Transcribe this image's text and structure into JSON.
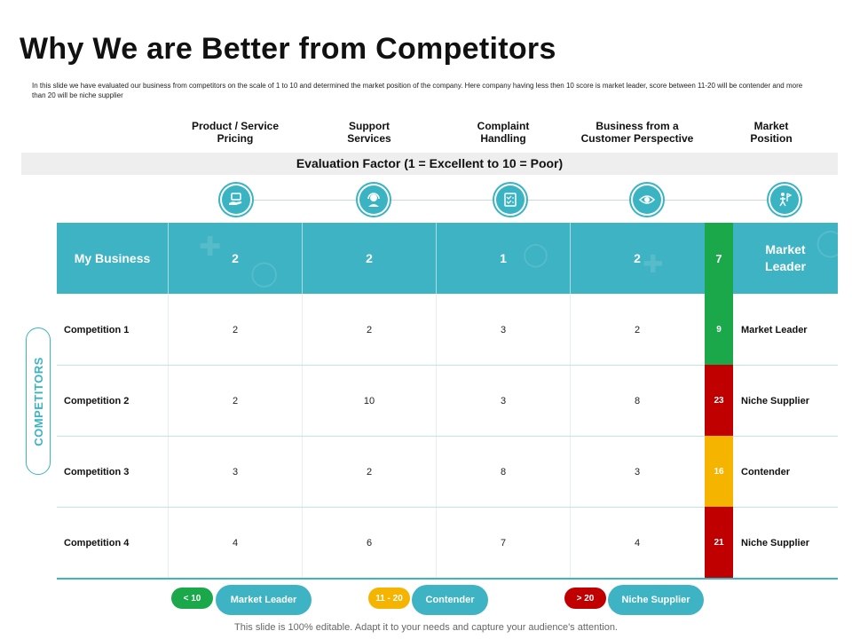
{
  "title": "Why We are Better from Competitors",
  "description": "In this slide we have evaluated our business from competitors on the scale of 1 to 10 and determined the market position of the company. Here company having less then 10 score is market leader, score between 11-20 will be contender and more than 20 will be niche supplier",
  "columns": [
    {
      "line1": "Product / Service",
      "line2": "Pricing"
    },
    {
      "line1": "Support",
      "line2": "Services"
    },
    {
      "line1": "Complaint",
      "line2": "Handling"
    },
    {
      "line1": "Business from a",
      "line2": "Customer Perspective"
    },
    {
      "line1": "Market",
      "line2": "Position"
    }
  ],
  "evaluation_factor": "Evaluation Factor (1 = Excellent to 10 = Poor)",
  "icons": [
    "pricing-hand-icon",
    "support-headset-icon",
    "complaint-checklist-icon",
    "customer-eye-icon",
    "market-position-person-icon"
  ],
  "my_business": {
    "label": "My Business",
    "values": [
      "2",
      "2",
      "1",
      "2"
    ],
    "total": "7",
    "position_line1": "Market",
    "position_line2": "Leader"
  },
  "side_label": "COMPETITORS",
  "rows": [
    {
      "label": "Competition 1",
      "values": [
        "2",
        "2",
        "3",
        "2"
      ],
      "total": "9",
      "position": "Market Leader",
      "status": "leader"
    },
    {
      "label": "Competition 2",
      "values": [
        "2",
        "10",
        "3",
        "8"
      ],
      "total": "23",
      "position": "Niche Supplier",
      "status": "niche"
    },
    {
      "label": "Competition 3",
      "values": [
        "3",
        "2",
        "8",
        "3"
      ],
      "total": "16",
      "position": "Contender",
      "status": "contender"
    },
    {
      "label": "Competition 4",
      "values": [
        "4",
        "6",
        "7",
        "4"
      ],
      "total": "21",
      "position": "Niche Supplier",
      "status": "niche"
    }
  ],
  "legend": [
    {
      "range": "< 10",
      "label": "Market Leader",
      "color": "#1aa84a"
    },
    {
      "range": "11 - 20",
      "label": "Contender",
      "color": "#f5b400"
    },
    {
      "range": "> 20",
      "label": "Niche Supplier",
      "color": "#c00000"
    }
  ],
  "colors": {
    "accent": "#3db3c3",
    "leader": "#1aa84a",
    "contender": "#f5b400",
    "niche": "#c00000"
  },
  "footer": "This slide is 100% editable. Adapt it to your needs and capture your audience's attention."
}
